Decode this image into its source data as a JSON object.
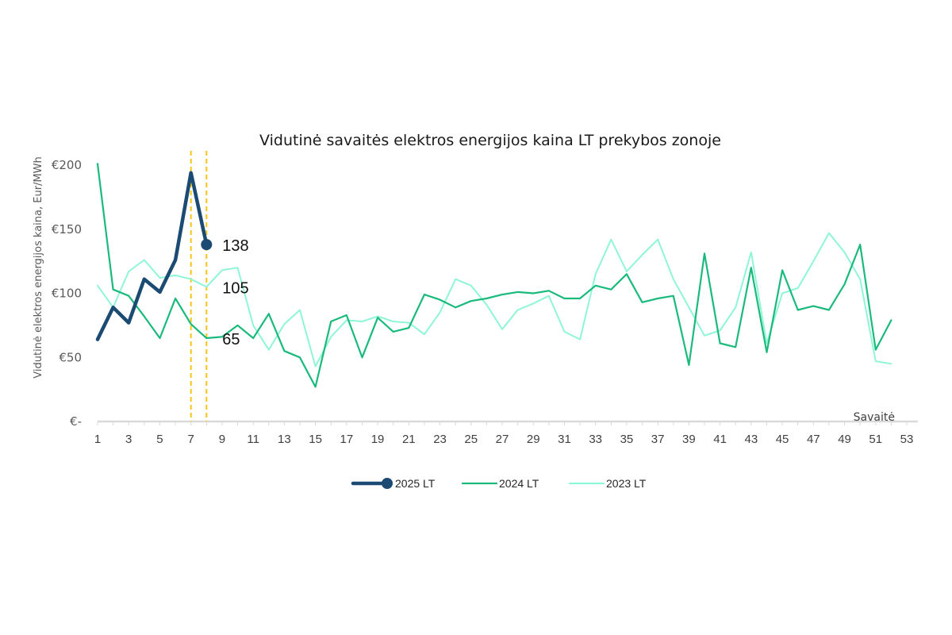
{
  "chart_data": {
    "type": "line",
    "title": "Vidutinė savaitės elektros energijos kaina LT prekybos zonoje",
    "ylabel": "Vidutinė elektros energijos kaina, Eur/MWh",
    "xlabel": "Savaitė",
    "ylim": [
      0,
      200
    ],
    "xlim": [
      1,
      53
    ],
    "y_ticks": [
      {
        "value": 0,
        "label": "€-"
      },
      {
        "value": 50,
        "label": "€50"
      },
      {
        "value": 100,
        "label": "€100"
      },
      {
        "value": 150,
        "label": "€150"
      },
      {
        "value": 200,
        "label": "€200"
      }
    ],
    "x_ticks": [
      1,
      3,
      5,
      7,
      9,
      11,
      13,
      15,
      17,
      19,
      21,
      23,
      25,
      27,
      29,
      31,
      33,
      35,
      37,
      39,
      41,
      43,
      45,
      47,
      49,
      51,
      53
    ],
    "series": [
      {
        "name": "2023 LT",
        "color": "#8ef5d6",
        "x": [
          1,
          2,
          3,
          4,
          5,
          6,
          7,
          8,
          9,
          10,
          11,
          12,
          13,
          14,
          15,
          16,
          17,
          18,
          19,
          20,
          21,
          22,
          23,
          24,
          25,
          26,
          27,
          28,
          29,
          30,
          31,
          32,
          33,
          34,
          35,
          36,
          37,
          38,
          39,
          40,
          41,
          42,
          43,
          44,
          45,
          46,
          47,
          48,
          49,
          50,
          51,
          52
        ],
        "values": [
          106,
          89,
          117,
          126,
          112,
          114,
          111,
          105,
          118,
          120,
          75,
          56,
          76,
          87,
          43,
          66,
          79,
          78,
          82,
          78,
          77,
          68,
          85,
          111,
          106,
          91,
          72,
          87,
          92,
          98,
          70,
          64,
          115,
          142,
          117,
          130,
          142,
          111,
          89,
          67,
          71,
          89,
          132,
          61,
          100,
          104,
          125,
          147,
          132,
          111,
          47,
          45
        ]
      },
      {
        "name": "2024 LT",
        "color": "#1aba7c",
        "x": [
          1,
          2,
          3,
          4,
          5,
          6,
          7,
          8,
          9,
          10,
          11,
          12,
          13,
          14,
          15,
          16,
          17,
          18,
          19,
          20,
          21,
          22,
          23,
          24,
          25,
          26,
          27,
          28,
          29,
          30,
          31,
          32,
          33,
          34,
          35,
          36,
          37,
          38,
          39,
          40,
          41,
          42,
          43,
          44,
          45,
          46,
          47,
          48,
          49,
          50,
          51,
          52
        ],
        "values": [
          201,
          103,
          98,
          82,
          65,
          96,
          76,
          65,
          66,
          75,
          65,
          84,
          55,
          50,
          27,
          78,
          83,
          50,
          81,
          70,
          73,
          99,
          95,
          89,
          94,
          96,
          99,
          101,
          100,
          102,
          96,
          96,
          106,
          103,
          115,
          93,
          96,
          98,
          44,
          131,
          61,
          58,
          120,
          54,
          118,
          87,
          90,
          87,
          107,
          138,
          56,
          79
        ]
      },
      {
        "name": "2025 LT",
        "color": "#1b4a72",
        "x": [
          1,
          2,
          3,
          4,
          5,
          6,
          7,
          8
        ],
        "values": [
          64,
          89,
          77,
          111,
          101,
          126,
          194,
          138
        ]
      }
    ],
    "data_labels": [
      {
        "series": "2025 LT",
        "x": 8,
        "value": 138,
        "text": "138"
      },
      {
        "series": "2023 LT",
        "x": 8,
        "value": 105,
        "text": "105"
      },
      {
        "series": "2024 LT",
        "x": 8,
        "value": 65,
        "text": "65"
      }
    ],
    "reference_lines": [
      {
        "x": 7,
        "color": "#f5c518",
        "style": "dashed"
      },
      {
        "x": 8,
        "color": "#f5c518",
        "style": "dashed"
      }
    ],
    "legend": {
      "position": "bottom",
      "items": [
        "2025 LT",
        "2024 LT",
        "2023 LT"
      ]
    },
    "grid": false
  }
}
